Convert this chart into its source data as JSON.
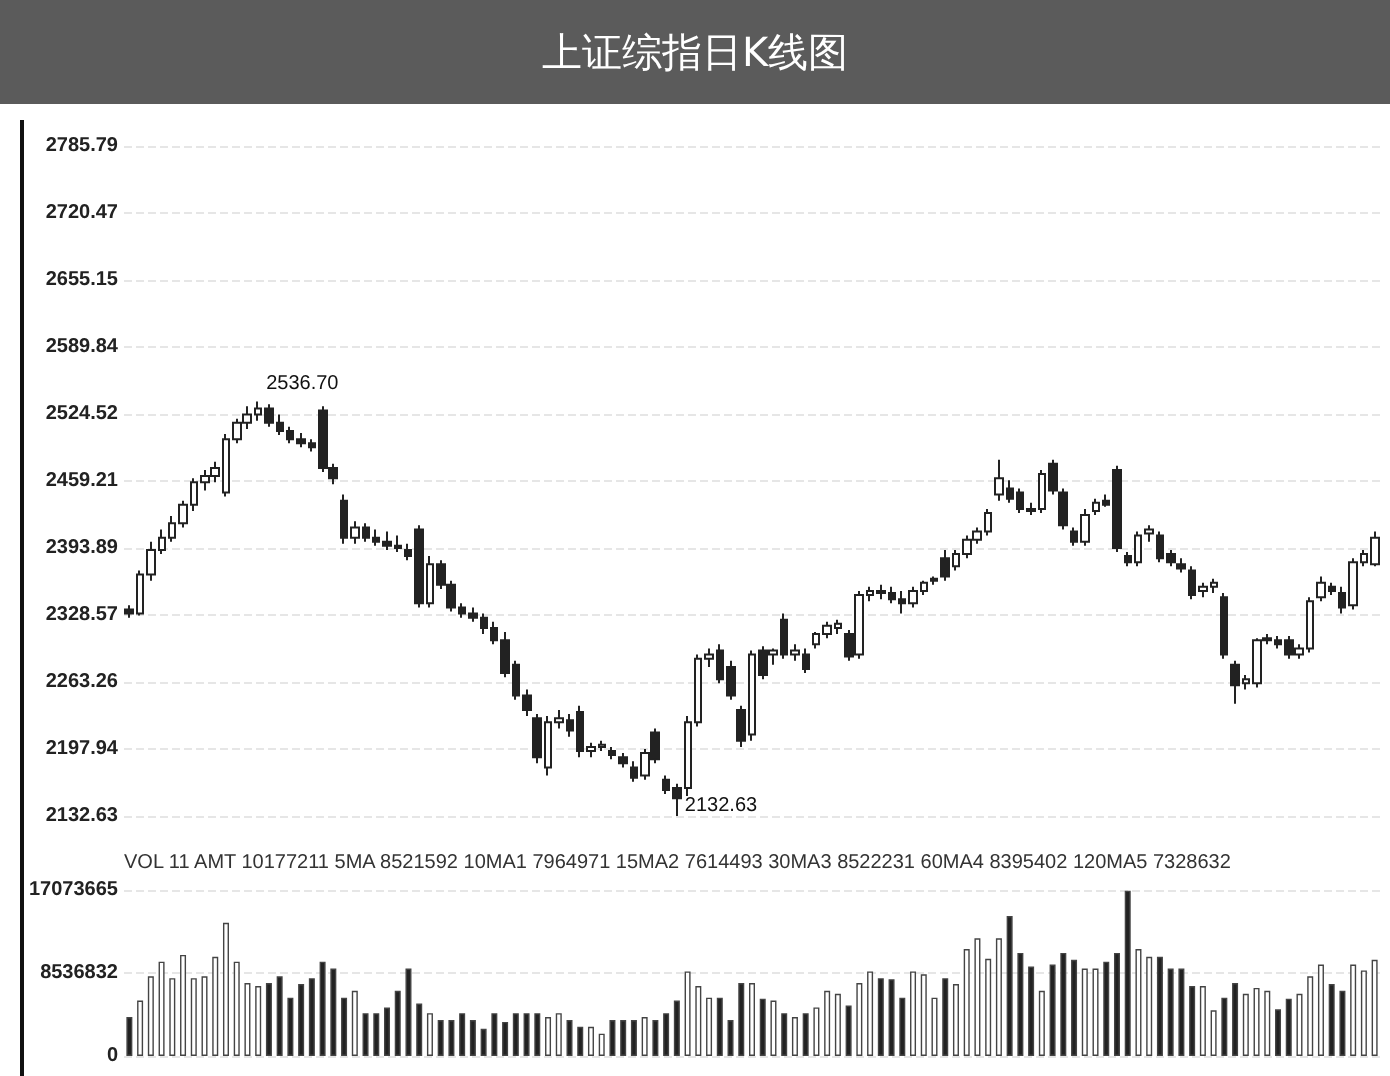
{
  "chart_data": [
    {
      "type": "candlestick",
      "title": "上证综指日K线图",
      "categories": [
        null,
        null,
        null,
        null,
        null,
        null,
        null,
        null,
        null,
        null,
        null,
        null,
        null,
        null,
        null,
        null,
        null,
        null,
        null,
        null,
        null,
        null,
        null,
        null,
        null,
        null,
        null,
        null,
        null,
        null,
        null,
        null,
        null,
        null,
        null,
        null,
        null,
        null,
        null,
        null,
        null,
        null,
        null,
        null,
        null,
        null,
        null,
        null,
        null,
        null,
        null,
        null,
        null,
        null,
        null,
        null,
        null,
        null,
        null,
        null,
        null,
        null,
        null,
        null,
        null,
        null,
        null,
        null,
        null,
        null,
        null,
        null,
        null,
        null,
        null,
        null,
        null,
        null,
        null,
        null,
        null,
        null,
        null,
        null,
        null,
        null,
        null,
        null,
        null,
        null,
        null,
        null,
        null,
        null,
        null,
        null,
        null,
        null,
        null,
        null,
        null,
        null,
        null,
        null,
        null,
        null,
        null,
        null,
        null,
        null,
        null,
        null,
        null,
        null,
        null,
        null,
        null
      ],
      "series": [
        {
          "type": "candlestick",
          "color": "#222222",
          "ohlc": [
            [
              2334,
              2338,
              2326,
              2330
            ],
            [
              2330,
              2372,
              2328,
              2368
            ],
            [
              2368,
              2400,
              2362,
              2392
            ],
            [
              2392,
              2412,
              2388,
              2404
            ],
            [
              2404,
              2425,
              2400,
              2418
            ],
            [
              2418,
              2440,
              2414,
              2436
            ],
            [
              2436,
              2462,
              2430,
              2458
            ],
            [
              2458,
              2470,
              2450,
              2464
            ],
            [
              2464,
              2478,
              2458,
              2472
            ],
            [
              2448,
              2505,
              2444,
              2500
            ],
            [
              2500,
              2520,
              2496,
              2516
            ],
            [
              2516,
              2532,
              2510,
              2524
            ],
            [
              2524,
              2536.7,
              2518,
              2530
            ],
            [
              2530,
              2534,
              2512,
              2516
            ],
            [
              2516,
              2524,
              2504,
              2508
            ],
            [
              2508,
              2512,
              2496,
              2500
            ],
            [
              2500,
              2506,
              2492,
              2496
            ],
            [
              2496,
              2500,
              2488,
              2492
            ],
            [
              2528,
              2532,
              2468,
              2472
            ],
            [
              2472,
              2476,
              2456,
              2462
            ],
            [
              2440,
              2446,
              2398,
              2404
            ],
            [
              2404,
              2420,
              2398,
              2414
            ],
            [
              2414,
              2418,
              2400,
              2404
            ],
            [
              2404,
              2412,
              2396,
              2400
            ],
            [
              2400,
              2410,
              2392,
              2396
            ],
            [
              2396,
              2406,
              2390,
              2394
            ],
            [
              2392,
              2398,
              2382,
              2386
            ],
            [
              2412,
              2416,
              2336,
              2340
            ],
            [
              2340,
              2386,
              2336,
              2378
            ],
            [
              2378,
              2382,
              2354,
              2358
            ],
            [
              2358,
              2362,
              2332,
              2336
            ],
            [
              2336,
              2340,
              2326,
              2330
            ],
            [
              2330,
              2336,
              2322,
              2326
            ],
            [
              2326,
              2330,
              2310,
              2316
            ],
            [
              2316,
              2322,
              2300,
              2304
            ],
            [
              2304,
              2312,
              2268,
              2272
            ],
            [
              2280,
              2284,
              2246,
              2250
            ],
            [
              2250,
              2256,
              2230,
              2236
            ],
            [
              2228,
              2232,
              2184,
              2190
            ],
            [
              2180,
              2230,
              2172,
              2224
            ],
            [
              2224,
              2236,
              2218,
              2228
            ],
            [
              2226,
              2232,
              2210,
              2216
            ],
            [
              2234,
              2240,
              2190,
              2196
            ],
            [
              2196,
              2204,
              2190,
              2200
            ],
            [
              2200,
              2206,
              2196,
              2202
            ],
            [
              2196,
              2200,
              2188,
              2192
            ],
            [
              2190,
              2194,
              2180,
              2184
            ],
            [
              2180,
              2186,
              2166,
              2170
            ],
            [
              2172,
              2198,
              2168,
              2194
            ],
            [
              2214,
              2218,
              2184,
              2188
            ],
            [
              2168,
              2172,
              2154,
              2158
            ],
            [
              2160,
              2164,
              2132.63,
              2150
            ],
            [
              2160,
              2230,
              2150,
              2224
            ],
            [
              2224,
              2290,
              2220,
              2286
            ],
            [
              2286,
              2296,
              2278,
              2290
            ],
            [
              2294,
              2300,
              2262,
              2266
            ],
            [
              2278,
              2284,
              2246,
              2250
            ],
            [
              2236,
              2240,
              2200,
              2206
            ],
            [
              2212,
              2294,
              2206,
              2290
            ],
            [
              2294,
              2298,
              2266,
              2270
            ],
            [
              2290,
              2296,
              2280,
              2294
            ],
            [
              2324,
              2330,
              2286,
              2290
            ],
            [
              2290,
              2300,
              2284,
              2294
            ],
            [
              2290,
              2296,
              2272,
              2276
            ],
            [
              2300,
              2312,
              2296,
              2310
            ],
            [
              2310,
              2322,
              2306,
              2318
            ],
            [
              2316,
              2324,
              2310,
              2320
            ],
            [
              2310,
              2314,
              2284,
              2288
            ],
            [
              2290,
              2352,
              2286,
              2348
            ],
            [
              2348,
              2356,
              2342,
              2352
            ],
            [
              2352,
              2358,
              2344,
              2350
            ],
            [
              2350,
              2356,
              2340,
              2344
            ],
            [
              2344,
              2352,
              2330,
              2340
            ],
            [
              2340,
              2356,
              2336,
              2352
            ],
            [
              2352,
              2362,
              2348,
              2360
            ],
            [
              2362,
              2366,
              2358,
              2364
            ],
            [
              2384,
              2392,
              2362,
              2366
            ],
            [
              2376,
              2392,
              2372,
              2388
            ],
            [
              2388,
              2406,
              2384,
              2402
            ],
            [
              2402,
              2414,
              2398,
              2410
            ],
            [
              2410,
              2432,
              2406,
              2428
            ],
            [
              2446,
              2480,
              2440,
              2462
            ],
            [
              2452,
              2460,
              2438,
              2442
            ],
            [
              2448,
              2452,
              2428,
              2432
            ],
            [
              2432,
              2438,
              2426,
              2430
            ],
            [
              2432,
              2470,
              2428,
              2466
            ],
            [
              2476,
              2480,
              2446,
              2450
            ],
            [
              2448,
              2452,
              2412,
              2416
            ],
            [
              2410,
              2414,
              2396,
              2400
            ],
            [
              2400,
              2432,
              2396,
              2426
            ],
            [
              2430,
              2442,
              2426,
              2438
            ],
            [
              2440,
              2446,
              2434,
              2436
            ],
            [
              2470,
              2474,
              2390,
              2394
            ],
            [
              2386,
              2390,
              2376,
              2380
            ],
            [
              2380,
              2410,
              2376,
              2406
            ],
            [
              2408,
              2416,
              2400,
              2412
            ],
            [
              2406,
              2410,
              2380,
              2384
            ],
            [
              2388,
              2392,
              2376,
              2380
            ],
            [
              2378,
              2384,
              2370,
              2374
            ],
            [
              2372,
              2376,
              2344,
              2348
            ],
            [
              2352,
              2360,
              2346,
              2356
            ],
            [
              2356,
              2364,
              2350,
              2360
            ],
            [
              2346,
              2350,
              2286,
              2290
            ],
            [
              2280,
              2284,
              2242,
              2260
            ],
            [
              2262,
              2270,
              2256,
              2266
            ],
            [
              2262,
              2306,
              2258,
              2304
            ],
            [
              2304,
              2310,
              2300,
              2306
            ],
            [
              2304,
              2308,
              2296,
              2300
            ],
            [
              2304,
              2308,
              2286,
              2290
            ],
            [
              2290,
              2300,
              2286,
              2296
            ],
            [
              2296,
              2346,
              2292,
              2342
            ],
            [
              2346,
              2366,
              2342,
              2360
            ],
            [
              2356,
              2360,
              2348,
              2352
            ],
            [
              2350,
              2356,
              2330,
              2336
            ],
            [
              2338,
              2384,
              2334,
              2380
            ],
            [
              2380,
              2392,
              2376,
              2388
            ],
            [
              2378,
              2410,
              2376,
              2404
            ]
          ]
        }
      ],
      "ylim": [
        2132.63,
        2785.79
      ],
      "yticks": [
        2132.63,
        2197.94,
        2263.26,
        2328.57,
        2393.89,
        2459.21,
        2524.52,
        2589.84,
        2655.15,
        2720.47,
        2785.79
      ],
      "grid": "y",
      "tick_labels": "y",
      "annotations": [
        "2536.70",
        "2132.63"
      ]
    },
    {
      "type": "bar",
      "categories": [
        null,
        null,
        null,
        null,
        null,
        null,
        null,
        null,
        null,
        null,
        null,
        null,
        null,
        null,
        null,
        null,
        null,
        null,
        null,
        null,
        null,
        null,
        null,
        null,
        null,
        null,
        null,
        null,
        null,
        null,
        null,
        null,
        null,
        null,
        null,
        null,
        null,
        null,
        null,
        null,
        null,
        null,
        null,
        null,
        null,
        null,
        null,
        null,
        null,
        null,
        null,
        null,
        null,
        null,
        null,
        null,
        null,
        null,
        null,
        null,
        null,
        null,
        null,
        null,
        null,
        null,
        null,
        null,
        null,
        null,
        null,
        null,
        null,
        null,
        null,
        null,
        null,
        null,
        null,
        null,
        null,
        null,
        null,
        null,
        null,
        null,
        null,
        null,
        null,
        null,
        null,
        null,
        null,
        null,
        null,
        null,
        null,
        null,
        null,
        null,
        null,
        null,
        null,
        null,
        null,
        null,
        null,
        null,
        null,
        null,
        null,
        null,
        null,
        null,
        null,
        null,
        null
      ],
      "values": [
        4000000,
        5700000,
        8200000,
        9700000,
        8000000,
        10400000,
        8000000,
        8200000,
        10200000,
        13700000,
        9700000,
        7500000,
        7200000,
        7500000,
        8200000,
        6000000,
        7400000,
        8000000,
        9700000,
        9000000,
        6000000,
        6700000,
        4400000,
        4400000,
        5000000,
        6700000,
        9000000,
        5400000,
        4400000,
        3700000,
        3700000,
        4400000,
        3700000,
        2800000,
        4400000,
        3500000,
        4400000,
        4400000,
        4400000,
        4000000,
        4400000,
        3700000,
        3000000,
        3000000,
        2300000,
        3700000,
        3700000,
        3700000,
        4000000,
        3700000,
        4400000,
        5700000,
        8700000,
        7200000,
        6000000,
        6000000,
        3700000,
        7500000,
        7500000,
        5900000,
        5700000,
        4400000,
        4000000,
        4400000,
        5000000,
        6700000,
        6400000,
        5200000,
        7500000,
        8700000,
        8000000,
        7900000,
        6000000,
        8700000,
        8400000,
        6000000,
        8000000,
        7400000,
        11000000,
        12100000,
        10000000,
        12100000,
        14400000,
        10600000,
        9200000,
        6700000,
        9400000,
        10600000,
        9900000,
        9000000,
        9000000,
        9700000,
        10600000,
        17000000,
        11000000,
        10200000,
        10200000,
        9000000,
        9000000,
        7200000,
        7200000,
        4700000,
        6000000,
        7500000,
        6400000,
        7000000,
        6700000,
        4800000,
        5900000,
        6400000,
        8200000,
        9400000,
        7400000,
        6700000,
        9400000,
        8800000,
        9900000
      ],
      "colors": [
        "#222222",
        "#ffffff",
        "#ffffff",
        "#ffffff",
        "#ffffff",
        "#ffffff",
        "#ffffff",
        "#ffffff",
        "#ffffff",
        "#ffffff",
        "#ffffff",
        "#ffffff",
        "#ffffff",
        "#222222",
        "#222222",
        "#222222",
        "#222222",
        "#222222",
        "#222222",
        "#222222",
        "#222222",
        "#ffffff",
        "#222222",
        "#222222",
        "#222222",
        "#222222",
        "#222222",
        "#222222",
        "#ffffff",
        "#222222",
        "#222222",
        "#222222",
        "#222222",
        "#222222",
        "#222222",
        "#222222",
        "#222222",
        "#222222",
        "#222222",
        "#ffffff",
        "#ffffff",
        "#222222",
        "#222222",
        "#ffffff",
        "#ffffff",
        "#222222",
        "#222222",
        "#222222",
        "#ffffff",
        "#222222",
        "#222222",
        "#222222",
        "#ffffff",
        "#ffffff",
        "#ffffff",
        "#222222",
        "#222222",
        "#222222",
        "#ffffff",
        "#222222",
        "#ffffff",
        "#222222",
        "#ffffff",
        "#222222",
        "#ffffff",
        "#ffffff",
        "#ffffff",
        "#222222",
        "#ffffff",
        "#ffffff",
        "#222222",
        "#222222",
        "#222222",
        "#ffffff",
        "#ffffff",
        "#ffffff",
        "#222222",
        "#ffffff",
        "#ffffff",
        "#ffffff",
        "#ffffff",
        "#ffffff",
        "#222222",
        "#222222",
        "#222222",
        "#ffffff",
        "#222222",
        "#222222",
        "#222222",
        "#ffffff",
        "#ffffff",
        "#222222",
        "#222222",
        "#222222",
        "#ffffff",
        "#ffffff",
        "#222222",
        "#222222",
        "#222222",
        "#222222",
        "#ffffff",
        "#ffffff",
        "#222222",
        "#222222",
        "#ffffff",
        "#ffffff",
        "#ffffff",
        "#222222",
        "#222222",
        "#ffffff",
        "#ffffff",
        "#ffffff",
        "#222222",
        "#222222",
        "#ffffff",
        "#ffffff",
        "#ffffff"
      ],
      "ylim": [
        0,
        17073665
      ],
      "yticks": [
        0,
        8536832,
        17073665
      ],
      "grid": "y",
      "tick_labels": "y",
      "annotations": [
        "VOL 11 AMT 10177211 5MA 8521592 10MA1 7964971 15MA2 7614493 30MA3 8522231 60MA4 8395402 120MA5 7328632"
      ]
    }
  ]
}
